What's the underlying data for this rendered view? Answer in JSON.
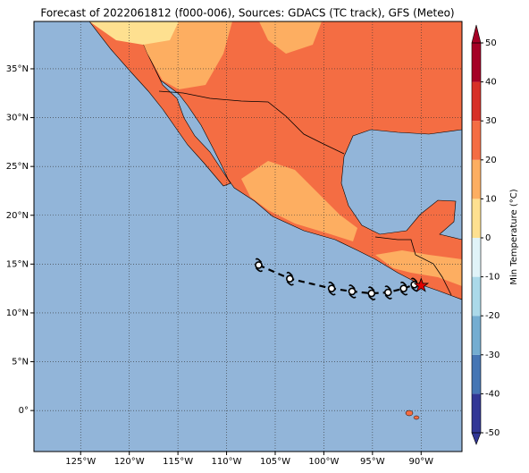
{
  "map": {
    "title": "Forecast of 2022061812 (f000-006), Sources: GDACS (TC track), GFS (Meteo)",
    "lon_range": [
      -129.8,
      -85.8
    ],
    "lat_range": [
      -4.2,
      39.85
    ],
    "lon_ticks": [
      {
        "value": -125,
        "label": "125°W"
      },
      {
        "value": -120,
        "label": "120°W"
      },
      {
        "value": -115,
        "label": "115°W"
      },
      {
        "value": -110,
        "label": "110°W"
      },
      {
        "value": -105,
        "label": "105°W"
      },
      {
        "value": -100,
        "label": "100°W"
      },
      {
        "value": -95,
        "label": "95°W"
      },
      {
        "value": -90,
        "label": "90°W"
      }
    ],
    "lat_ticks": [
      {
        "value": 0,
        "label": "0°"
      },
      {
        "value": 5,
        "label": "5°N"
      },
      {
        "value": 10,
        "label": "10°N"
      },
      {
        "value": 15,
        "label": "15°N"
      },
      {
        "value": 20,
        "label": "20°N"
      },
      {
        "value": 25,
        "label": "25°N"
      },
      {
        "value": 30,
        "label": "30°N"
      },
      {
        "value": 35,
        "label": "35°N"
      }
    ],
    "track": {
      "lon": [
        -106.7,
        -103.5,
        -99.2,
        -97.1,
        -95.1,
        -93.4,
        -91.8,
        -90.7
      ],
      "lat": [
        14.9,
        13.5,
        12.5,
        12.2,
        12.0,
        12.1,
        12.5,
        12.9
      ]
    },
    "current_position": {
      "lon": -90.0,
      "lat": 12.8
    },
    "colorbar": {
      "label": "Min Temperature (°C)",
      "lim": [
        -50,
        50
      ],
      "ticks": [
        -50,
        -40,
        -30,
        -20,
        -10,
        0,
        10,
        20,
        30,
        40,
        50
      ],
      "colors": [
        "#313695",
        "#4575b4",
        "#74add1",
        "#abd9e9",
        "#e0f3f8",
        "#fee090",
        "#fdae61",
        "#f46d43",
        "#d73027",
        "#a50026"
      ]
    }
  }
}
